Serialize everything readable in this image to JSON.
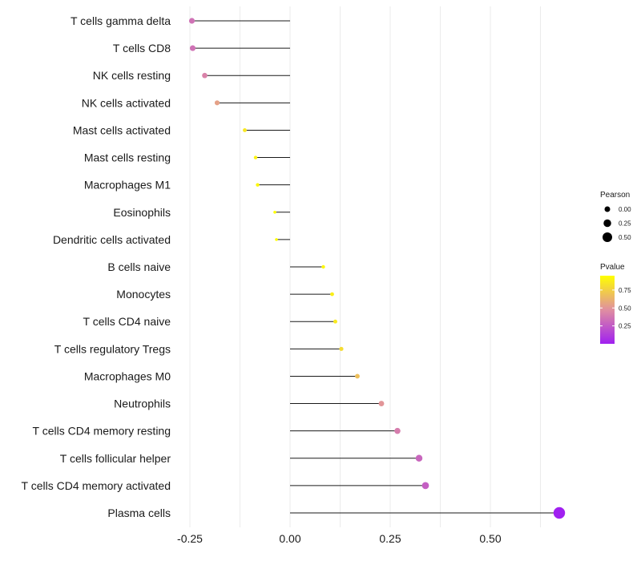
{
  "chart_data": {
    "type": "lollipop",
    "title": "",
    "xlabel": "",
    "ylabel": "",
    "xlim": [
      -0.28,
      0.72
    ],
    "grid": "vertical",
    "x_ticks": [
      -0.25,
      0.0,
      0.25,
      0.5
    ],
    "x_tick_labels": [
      "-0.25",
      "0.00",
      "0.25",
      "0.50"
    ],
    "categories": [
      "T cells gamma delta",
      "T cells CD8",
      "NK cells resting",
      "NK cells activated",
      "Mast cells activated",
      "Mast cells resting",
      "Macrophages M1",
      "Eosinophils",
      "Dendritic cells activated",
      "B cells naive",
      "Monocytes",
      "T cells CD4 naive",
      "T cells regulatory  Tregs ",
      "Macrophages M0",
      "Neutrophils",
      "T cells CD4 memory resting",
      "T cells follicular helper",
      "T cells CD4 memory activated",
      "Plasma cells"
    ],
    "values": [
      -0.245,
      -0.243,
      -0.213,
      -0.182,
      -0.113,
      -0.086,
      -0.081,
      -0.038,
      -0.034,
      0.083,
      0.105,
      0.113,
      0.128,
      0.168,
      0.228,
      0.268,
      0.322,
      0.338,
      0.672
    ],
    "pvalues": [
      0.35,
      0.35,
      0.42,
      0.55,
      0.85,
      0.9,
      0.92,
      0.98,
      0.98,
      0.92,
      0.88,
      0.86,
      0.8,
      0.68,
      0.5,
      0.4,
      0.3,
      0.27,
      0.0
    ],
    "legend_position": "right",
    "size_legend": {
      "title": "Pearson",
      "labels": [
        "0.00",
        "0.25",
        "0.50"
      ],
      "values": [
        0.0,
        0.25,
        0.5
      ]
    },
    "color_legend": {
      "title": "Pvalue",
      "labels": [
        "0.75",
        "0.50",
        "0.25"
      ],
      "values": [
        0.75,
        0.5,
        0.25
      ],
      "range": [
        0.0,
        0.95
      ]
    },
    "colors": {
      "low": "#a020f0",
      "mid": "#e08fa0",
      "high": "#ffff00",
      "stem": "#1a1a1a",
      "grid": "#ebebeb",
      "size_key": "#000000"
    }
  }
}
